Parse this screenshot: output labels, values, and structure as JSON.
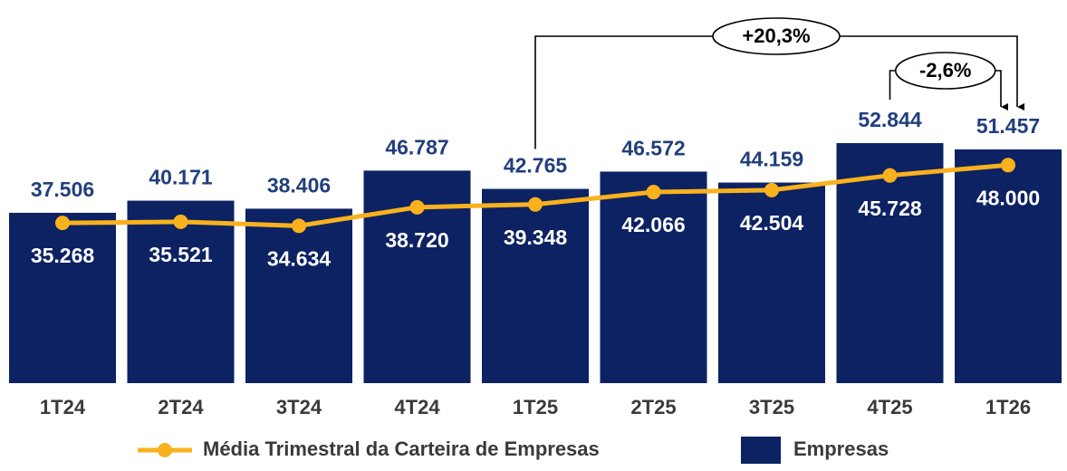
{
  "chart_data": {
    "type": "bar_line",
    "categories": [
      "1T24",
      "2T24",
      "3T24",
      "4T24",
      "1T25",
      "2T25",
      "3T25",
      "4T25",
      "1T26"
    ],
    "series": [
      {
        "name": "Empresas",
        "type": "bar",
        "color": "#0c2262",
        "values": [
          37506,
          40171,
          38406,
          46787,
          42765,
          46572,
          44159,
          52844,
          51457
        ],
        "value_labels": [
          "37.506",
          "40.171",
          "38.406",
          "46.787",
          "42.765",
          "46.572",
          "44.159",
          "52.844",
          "51.457"
        ]
      },
      {
        "name": "Média Trimestral da Carteira de Empresas",
        "type": "line",
        "color": "#f9b11d",
        "values": [
          35268,
          35521,
          34634,
          38720,
          39348,
          42066,
          42504,
          45728,
          48000
        ],
        "value_labels": [
          "35.268",
          "35.521",
          "34.634",
          "38.720",
          "39.348",
          "42.066",
          "42.504",
          "45.728",
          "48.000"
        ]
      }
    ],
    "annotations": [
      {
        "text": "+20,3%",
        "from": "1T25",
        "to": "1T26"
      },
      {
        "text": "-2,6%",
        "from": "4T25",
        "to": "1T26"
      }
    ],
    "legend": "bottom"
  }
}
